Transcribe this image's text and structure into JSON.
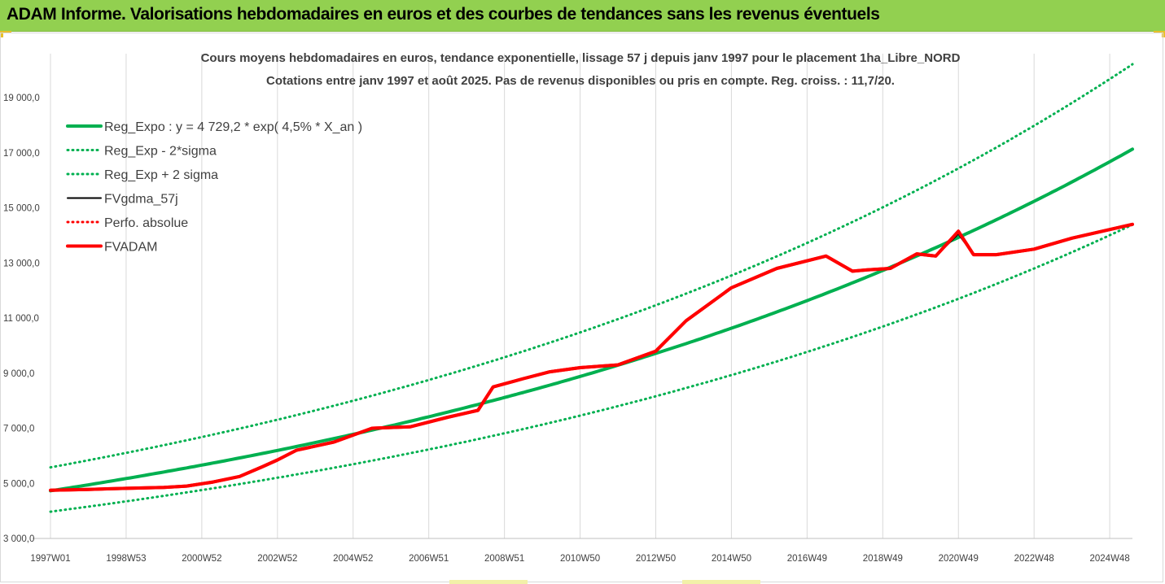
{
  "banner": {
    "title": "ADAM Informe. Valorisations hebdomadaires en euros et des courbes de tendances sans les revenus éventuels"
  },
  "chart_data": {
    "type": "line",
    "title_line1": "Cours moyens hebdomadaires en euros, tendance exponentielle, lissage 57 j depuis janv 1997  pour le placement 1ha_Libre_NORD",
    "title_line2": "Cotations entre janv 1997 et août 2025. Pas de revenus disponibles ou pris en compte. Reg. croiss. : 11,7/20.",
    "x_tick_labels": [
      "1997W01",
      "1998W53",
      "2000W52",
      "2002W52",
      "2004W52",
      "2006W51",
      "2008W51",
      "2010W50",
      "2012W50",
      "2014W50",
      "2016W49",
      "2018W49",
      "2020W49",
      "2022W48",
      "2024W48"
    ],
    "x_tick_years": [
      1997.0,
      1999.0,
      2001.0,
      2003.0,
      2005.0,
      2007.0,
      2009.0,
      2011.0,
      2013.0,
      2015.0,
      2017.0,
      2019.0,
      2021.0,
      2023.0,
      2025.0
    ],
    "xlim": [
      1997.0,
      2025.6
    ],
    "y_tick_labels": [
      "3 000,0",
      "5 000,0",
      "7 000,0",
      "9 000,0",
      "11 000,0",
      "13 000,0",
      "15 000,0",
      "17 000,0",
      "19 000,0"
    ],
    "y_tick_values": [
      3000,
      5000,
      7000,
      9000,
      11000,
      13000,
      15000,
      17000,
      19000
    ],
    "ylim": [
      3000,
      20300
    ],
    "grid": "vertical",
    "legend_position": "top-left",
    "series": [
      {
        "name": "Reg_Expo : y = 4 729,2 * exp( 4,5% *  X_an )",
        "color": "#00b050",
        "style": "solid",
        "width": 4,
        "trend": {
          "a": 4729.2,
          "rate": 0.045,
          "factor": 1.0
        }
      },
      {
        "name": "Reg_Exp - 2*sigma",
        "color": "#00b050",
        "style": "dotted",
        "width": 3,
        "trend": {
          "a": 4729.2,
          "rate": 0.045,
          "factor": 0.84
        }
      },
      {
        "name": "Reg_Exp + 2 sigma",
        "color": "#00b050",
        "style": "dotted",
        "width": 3,
        "trend": {
          "a": 4729.2,
          "rate": 0.045,
          "factor": 1.18
        }
      },
      {
        "name": "FVgdma_57j",
        "color": "#000000",
        "style": "solid",
        "width": 2,
        "x": [
          1997.0,
          1998.0,
          1999.0,
          2000.0,
          2000.6,
          2001.3,
          2002.0,
          2002.6,
          2003.0,
          2003.5,
          2004.5,
          2005.5,
          2006.5,
          2007.5,
          2008.3,
          2008.7,
          2009.5,
          2010.2,
          2011.0,
          2012.0,
          2013.0,
          2013.8,
          2015.0,
          2016.2,
          2017.5,
          2018.2,
          2018.6,
          2019.2,
          2019.9,
          2020.4,
          2021.0,
          2021.4,
          2022.0,
          2023.0,
          2024.0,
          2025.6
        ],
        "y": [
          4750,
          4780,
          4820,
          4850,
          4900,
          5050,
          5250,
          5600,
          5850,
          6200,
          6500,
          7000,
          7050,
          7400,
          7650,
          8500,
          8800,
          9050,
          9200,
          9300,
          9800,
          10900,
          12100,
          12800,
          13250,
          12700,
          12750,
          12800,
          13330,
          13250,
          14050,
          13300,
          13300,
          13500,
          13900,
          14400
        ]
      },
      {
        "name": "Perfo. absolue",
        "color": "#ff0000",
        "style": "dotted",
        "width": 2,
        "same_as": "FVADAM"
      },
      {
        "name": "FVADAM",
        "color": "#ff0000",
        "style": "solid",
        "width": 4,
        "x": [
          1997.0,
          1998.0,
          1999.0,
          2000.0,
          2000.6,
          2001.3,
          2002.0,
          2002.6,
          2003.0,
          2003.5,
          2004.5,
          2005.5,
          2006.5,
          2007.5,
          2008.3,
          2008.7,
          2009.5,
          2010.2,
          2011.0,
          2012.0,
          2013.0,
          2013.8,
          2015.0,
          2016.2,
          2017.5,
          2018.2,
          2018.6,
          2019.2,
          2019.9,
          2020.4,
          2021.0,
          2021.4,
          2022.0,
          2023.0,
          2024.0,
          2025.6
        ],
        "y": [
          4750,
          4780,
          4820,
          4850,
          4900,
          5050,
          5250,
          5600,
          5850,
          6200,
          6500,
          7000,
          7050,
          7400,
          7650,
          8500,
          8800,
          9050,
          9200,
          9300,
          9800,
          10900,
          12100,
          12800,
          13250,
          12700,
          12750,
          12800,
          13330,
          13250,
          14150,
          13300,
          13300,
          13500,
          13900,
          14400
        ]
      }
    ]
  }
}
